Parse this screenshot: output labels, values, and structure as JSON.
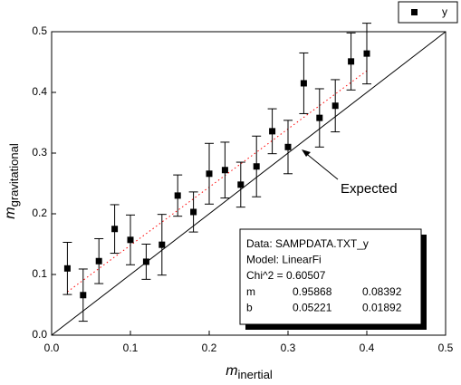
{
  "chart_data": {
    "type": "scatter",
    "x_label": {
      "symbol": "m",
      "subscript": "inertial"
    },
    "y_label": {
      "symbol": "m",
      "subscript": "gravitational"
    },
    "x": [
      0.02,
      0.04,
      0.06,
      0.08,
      0.1,
      0.12,
      0.14,
      0.16,
      0.18,
      0.2,
      0.22,
      0.24,
      0.26,
      0.28,
      0.3,
      0.32,
      0.34,
      0.36,
      0.38,
      0.4
    ],
    "series": [
      {
        "name": "y",
        "color": "#000000",
        "values": [
          0.11,
          0.066,
          0.122,
          0.175,
          0.157,
          0.121,
          0.149,
          0.23,
          0.203,
          0.266,
          0.272,
          0.248,
          0.278,
          0.336,
          0.31,
          0.415,
          0.358,
          0.378,
          0.451,
          0.464
        ],
        "errors": [
          0.043,
          0.043,
          0.037,
          0.04,
          0.041,
          0.029,
          0.05,
          0.034,
          0.033,
          0.05,
          0.046,
          0.037,
          0.05,
          0.037,
          0.044,
          0.05,
          0.048,
          0.043,
          0.047,
          0.05
        ]
      }
    ],
    "xlim": [
      0,
      0.5
    ],
    "ylim": [
      0,
      0.5
    ],
    "xticks": [
      {
        "value": 0,
        "label": "0.0"
      },
      0.1,
      0.2,
      0.3,
      0.4,
      0.5
    ],
    "yticks": [
      {
        "value": 0,
        "label": "0.0"
      },
      0.1,
      0.2,
      0.3,
      0.4,
      0.5
    ],
    "annotation": "Expected",
    "fit_color": "#ff0000",
    "fit_box": {
      "lines": [
        "Data: SAMPDATA.TXT_y",
        "Model: LinearFi",
        "Chi^2 = 0.60507"
      ],
      "rows": [
        {
          "name": "m",
          "value": 0.95868,
          "error": 0.08392
        },
        {
          "name": "b",
          "value": 0.05221,
          "error": 0.01892
        }
      ]
    }
  }
}
